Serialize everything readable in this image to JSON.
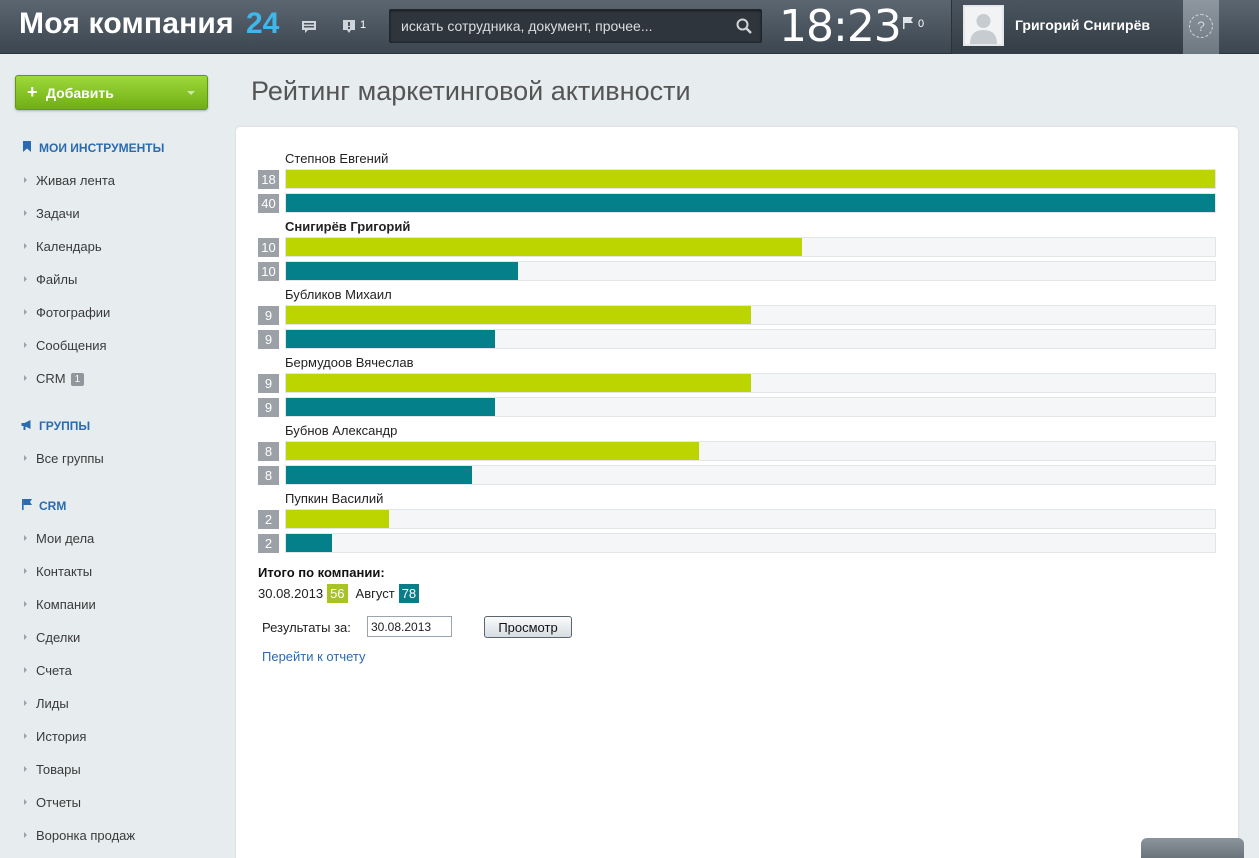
{
  "header": {
    "logo": "Моя компания",
    "logo_number": "24",
    "messages_count": "",
    "notifications_count": "1",
    "search_placeholder": "искать сотрудника, документ, прочее...",
    "clock": "18:23",
    "flag_count": "0",
    "user_name": "Григорий Снигирёв",
    "help_label": "?"
  },
  "sidebar": {
    "add_button": "Добавить",
    "sections": [
      {
        "title": "МОИ ИНСТРУМЕНТЫ",
        "items": [
          {
            "label": "Живая лента"
          },
          {
            "label": "Задачи"
          },
          {
            "label": "Календарь"
          },
          {
            "label": "Файлы"
          },
          {
            "label": "Фотографии"
          },
          {
            "label": "Сообщения"
          },
          {
            "label": "CRM",
            "badge": "1"
          }
        ]
      },
      {
        "title": "ГРУППЫ",
        "items": [
          {
            "label": "Все группы"
          }
        ]
      },
      {
        "title": "CRM",
        "items": [
          {
            "label": "Мои дела"
          },
          {
            "label": "Контакты"
          },
          {
            "label": "Компании"
          },
          {
            "label": "Сделки"
          },
          {
            "label": "Счета"
          },
          {
            "label": "Лиды"
          },
          {
            "label": "История"
          },
          {
            "label": "Товары"
          },
          {
            "label": "Отчеты"
          },
          {
            "label": "Воронка продаж"
          }
        ]
      }
    ]
  },
  "main": {
    "page_title": "Рейтинг маркетинговой активности",
    "totals_title": "Итого по компании:",
    "totals_date": "30.08.2013",
    "totals_date_value": "56",
    "totals_month": "Август",
    "totals_month_value": "78",
    "results_label": "Результаты за:",
    "results_date": "30.08.2013",
    "view_button": "Просмотр",
    "report_link": "Перейти к отчету"
  },
  "chart_data": {
    "type": "bar",
    "orientation": "horizontal",
    "colors": {
      "day": "#bcd500",
      "month": "#038089"
    },
    "people": [
      {
        "name": "Степнов Евгений",
        "day": 18,
        "month": 40,
        "bold": false
      },
      {
        "name": "Снигирёв Григорий",
        "day": 10,
        "month": 10,
        "bold": true
      },
      {
        "name": "Бубликов Михаил",
        "day": 9,
        "month": 9,
        "bold": false
      },
      {
        "name": "Бермудоов Вячеслав",
        "day": 9,
        "month": 9,
        "bold": false
      },
      {
        "name": "Бубнов Александр",
        "day": 8,
        "month": 8,
        "bold": false
      },
      {
        "name": "Пупкин Василий",
        "day": 2,
        "month": 2,
        "bold": false
      }
    ],
    "day_max": 18,
    "month_max": 40
  }
}
